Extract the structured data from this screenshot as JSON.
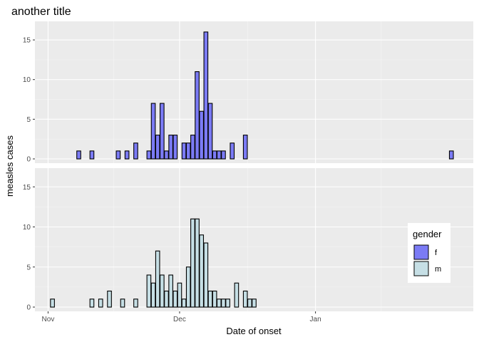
{
  "chart_data": {
    "type": "bar",
    "title": "another title",
    "xlabel": "Date of onset",
    "ylabel": "measles cases",
    "x_ticks": [
      {
        "label": "Nov",
        "date": "2023-11-01"
      },
      {
        "label": "Dec",
        "date": "2023-12-01"
      },
      {
        "label": "Jan",
        "date": "2024-01-01"
      }
    ],
    "xlim": [
      "2023-10-29",
      "2024-02-06"
    ],
    "ylim": [
      0,
      16.8
    ],
    "y_ticks": [
      0,
      5,
      10,
      15
    ],
    "grid": true,
    "legend": {
      "title": "gender",
      "position": "right",
      "entries": [
        {
          "label": "f",
          "color": "#7b7bf5"
        },
        {
          "label": "m",
          "color": "#c6dfe5"
        }
      ]
    },
    "series": [
      {
        "name": "f",
        "color": "#7b7bf5",
        "points": [
          {
            "date": "2023-11-08",
            "value": 1
          },
          {
            "date": "2023-11-11",
            "value": 1
          },
          {
            "date": "2023-11-17",
            "value": 1
          },
          {
            "date": "2023-11-19",
            "value": 1
          },
          {
            "date": "2023-11-21",
            "value": 2
          },
          {
            "date": "2023-11-24",
            "value": 1
          },
          {
            "date": "2023-11-25",
            "value": 7
          },
          {
            "date": "2023-11-26",
            "value": 3
          },
          {
            "date": "2023-11-27",
            "value": 7
          },
          {
            "date": "2023-11-28",
            "value": 1
          },
          {
            "date": "2023-11-29",
            "value": 3
          },
          {
            "date": "2023-11-30",
            "value": 3
          },
          {
            "date": "2023-12-02",
            "value": 2
          },
          {
            "date": "2023-12-03",
            "value": 2
          },
          {
            "date": "2023-12-04",
            "value": 3
          },
          {
            "date": "2023-12-05",
            "value": 11
          },
          {
            "date": "2023-12-06",
            "value": 6
          },
          {
            "date": "2023-12-07",
            "value": 16
          },
          {
            "date": "2023-12-08",
            "value": 7
          },
          {
            "date": "2023-12-09",
            "value": 1
          },
          {
            "date": "2023-12-10",
            "value": 1
          },
          {
            "date": "2023-12-11",
            "value": 1
          },
          {
            "date": "2023-12-13",
            "value": 2
          },
          {
            "date": "2023-12-16",
            "value": 3
          },
          {
            "date": "2024-02-01",
            "value": 1
          }
        ]
      },
      {
        "name": "m",
        "color": "#c6dfe5",
        "points": [
          {
            "date": "2023-11-02",
            "value": 1
          },
          {
            "date": "2023-11-11",
            "value": 1
          },
          {
            "date": "2023-11-13",
            "value": 1
          },
          {
            "date": "2023-11-15",
            "value": 2
          },
          {
            "date": "2023-11-18",
            "value": 1
          },
          {
            "date": "2023-11-21",
            "value": 1
          },
          {
            "date": "2023-11-24",
            "value": 4
          },
          {
            "date": "2023-11-25",
            "value": 3
          },
          {
            "date": "2023-11-26",
            "value": 7
          },
          {
            "date": "2023-11-27",
            "value": 4
          },
          {
            "date": "2023-11-28",
            "value": 2
          },
          {
            "date": "2023-11-29",
            "value": 4
          },
          {
            "date": "2023-11-30",
            "value": 2
          },
          {
            "date": "2023-12-01",
            "value": 3
          },
          {
            "date": "2023-12-02",
            "value": 1
          },
          {
            "date": "2023-12-03",
            "value": 5
          },
          {
            "date": "2023-12-04",
            "value": 11
          },
          {
            "date": "2023-12-05",
            "value": 11
          },
          {
            "date": "2023-12-06",
            "value": 9
          },
          {
            "date": "2023-12-07",
            "value": 8
          },
          {
            "date": "2023-12-08",
            "value": 2
          },
          {
            "date": "2023-12-09",
            "value": 2
          },
          {
            "date": "2023-12-10",
            "value": 1
          },
          {
            "date": "2023-12-11",
            "value": 1
          },
          {
            "date": "2023-12-12",
            "value": 1
          },
          {
            "date": "2023-12-14",
            "value": 3
          },
          {
            "date": "2023-12-16",
            "value": 2
          },
          {
            "date": "2023-12-17",
            "value": 1
          },
          {
            "date": "2023-12-18",
            "value": 1
          }
        ]
      }
    ]
  }
}
